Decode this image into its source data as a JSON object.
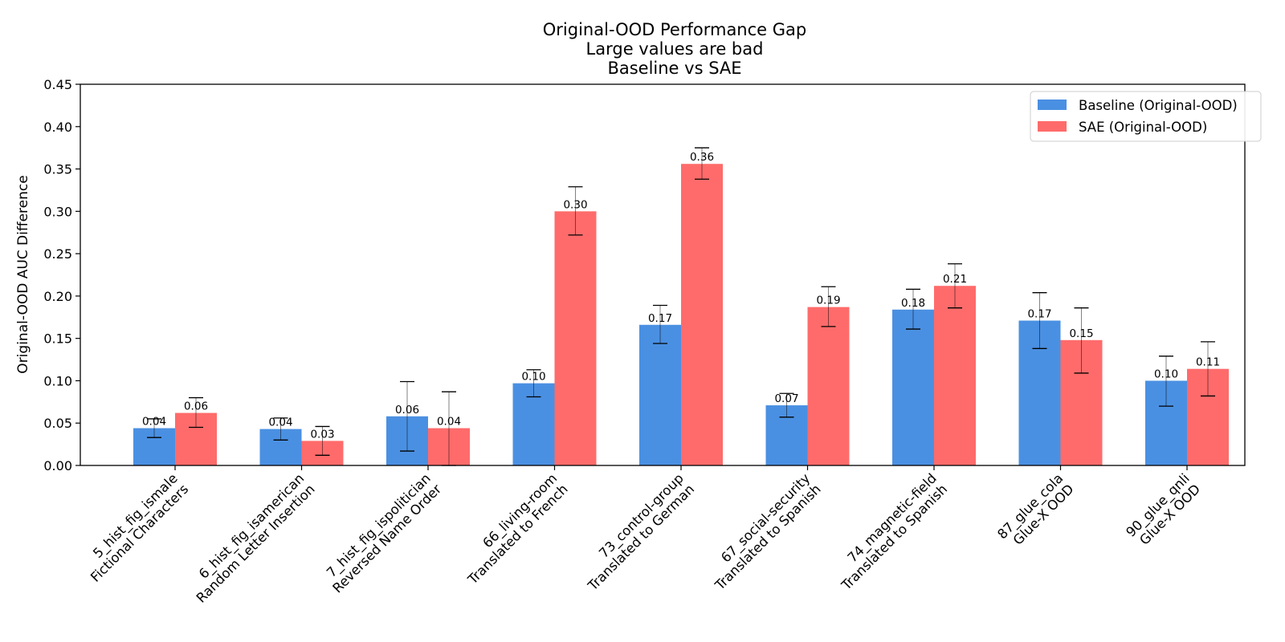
{
  "chart_data": {
    "type": "bar",
    "title_lines": [
      "Original-OOD Performance Gap",
      "Large values are bad",
      "Baseline vs SAE"
    ],
    "xlabel": "",
    "ylabel": "Original-OOD AUC Difference",
    "ylim": [
      0,
      0.45
    ],
    "yticks": [
      0.0,
      0.05,
      0.1,
      0.15,
      0.2,
      0.25,
      0.3,
      0.35,
      0.4,
      0.45
    ],
    "ytick_labels": [
      "0.00",
      "0.05",
      "0.10",
      "0.15",
      "0.20",
      "0.25",
      "0.30",
      "0.35",
      "0.40",
      "0.45"
    ],
    "grid": false,
    "legend_position": "top-right",
    "categories": [
      [
        "5_hist_fig_ismale",
        "Fictional Characters"
      ],
      [
        "6_hist_fig_isamerican",
        "Random Letter Insertion"
      ],
      [
        "7_hist_fig_ispolitician",
        "Reversed Name Order"
      ],
      [
        "66_living-room",
        "Translated to French"
      ],
      [
        "73_control-group",
        "Translated to German"
      ],
      [
        "67_social-security",
        "Translated to Spanish"
      ],
      [
        "74_magnetic-field",
        "Translated to Spanish"
      ],
      [
        "87_glue_cola",
        "Glue-X OOD"
      ],
      [
        "90_glue_qnli",
        "Glue-X OOD"
      ]
    ],
    "series": [
      {
        "name": "Baseline (Original-OOD)",
        "color": "#4a90e2",
        "values": [
          0.044,
          0.043,
          0.058,
          0.097,
          0.166,
          0.071,
          0.184,
          0.171,
          0.1
        ],
        "labels": [
          "0.04",
          "0.04",
          "0.06",
          "0.10",
          "0.17",
          "0.07",
          "0.18",
          "0.17",
          "0.10"
        ],
        "err_low": [
          0.033,
          0.03,
          0.017,
          0.081,
          0.144,
          0.057,
          0.161,
          0.138,
          0.07
        ],
        "err_high": [
          0.055,
          0.056,
          0.099,
          0.113,
          0.189,
          0.085,
          0.208,
          0.204,
          0.129
        ]
      },
      {
        "name": "SAE (Original-OOD)",
        "color": "#ff6b6b",
        "values": [
          0.062,
          0.029,
          0.044,
          0.3,
          0.356,
          0.187,
          0.212,
          0.148,
          0.114
        ],
        "labels": [
          "0.06",
          "0.03",
          "0.04",
          "0.30",
          "0.36",
          "0.19",
          "0.21",
          "0.15",
          "0.11"
        ],
        "err_low": [
          0.045,
          0.012,
          0.0,
          0.272,
          0.338,
          0.164,
          0.186,
          0.109,
          0.082
        ],
        "err_high": [
          0.08,
          0.046,
          0.087,
          0.329,
          0.375,
          0.211,
          0.238,
          0.186,
          0.146
        ]
      }
    ]
  }
}
